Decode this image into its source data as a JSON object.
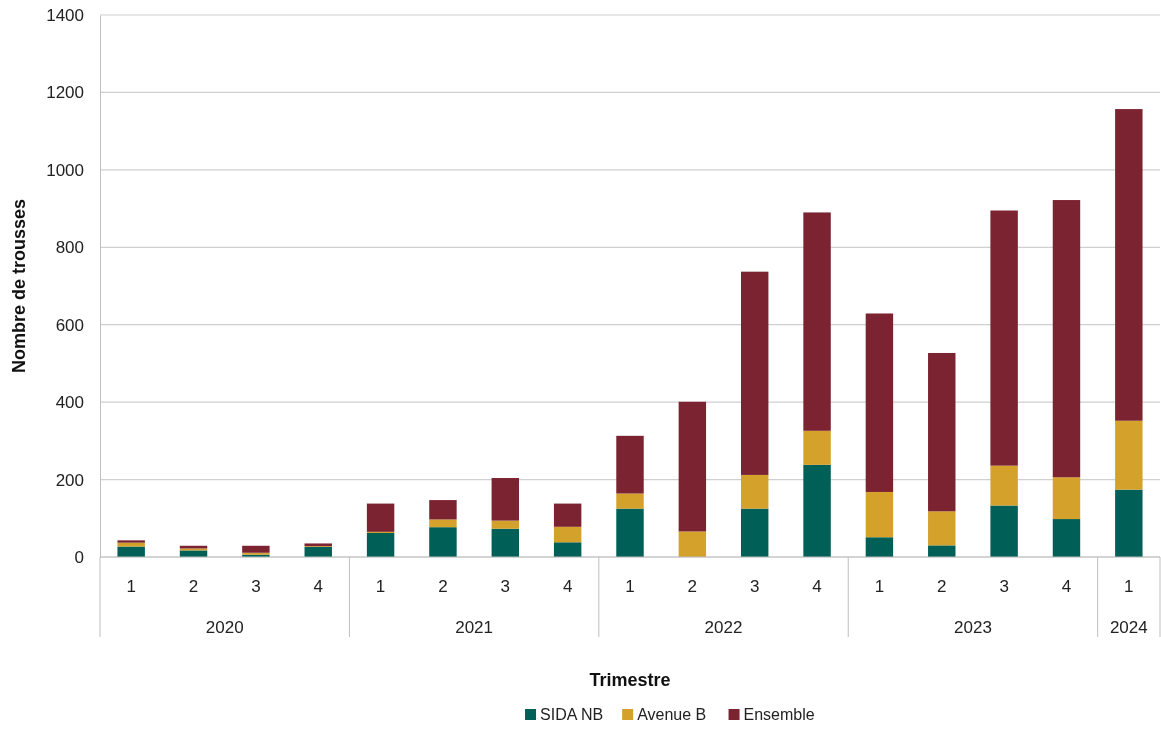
{
  "chart_data": {
    "type": "bar",
    "stacked": true,
    "xlabel": "Trimestre",
    "ylabel": "Nombre de trousses",
    "categories": [
      "1",
      "2",
      "3",
      "4",
      "1",
      "2",
      "3",
      "4",
      "1",
      "2",
      "3",
      "4",
      "1",
      "2",
      "3",
      "4",
      "1"
    ],
    "annotations": [
      "2020",
      "2021",
      "2022",
      "2023",
      "2024"
    ],
    "series": [
      {
        "name": "SIDA NB",
        "color": "#005f56",
        "values": [
          27,
          17,
          6,
          26,
          62,
          77,
          73,
          38,
          125,
          0,
          125,
          238,
          51,
          30,
          133,
          98,
          174
        ]
      },
      {
        "name": "Avenue B",
        "color": "#d4a12a",
        "values": [
          10,
          5,
          5,
          2,
          3,
          20,
          21,
          40,
          39,
          66,
          87,
          88,
          117,
          88,
          103,
          108,
          178
        ]
      },
      {
        "name": "Ensemble",
        "color": "#7b2330",
        "values": [
          6,
          7,
          18,
          7,
          73,
          50,
          110,
          60,
          149,
          335,
          525,
          564,
          461,
          409,
          659,
          716,
          805
        ]
      }
    ],
    "ylim": [
      0,
      1400
    ],
    "yticks": [
      0,
      200,
      400,
      600,
      800,
      1000,
      1200,
      1400
    ],
    "grid": "y",
    "legend": "bottom"
  }
}
